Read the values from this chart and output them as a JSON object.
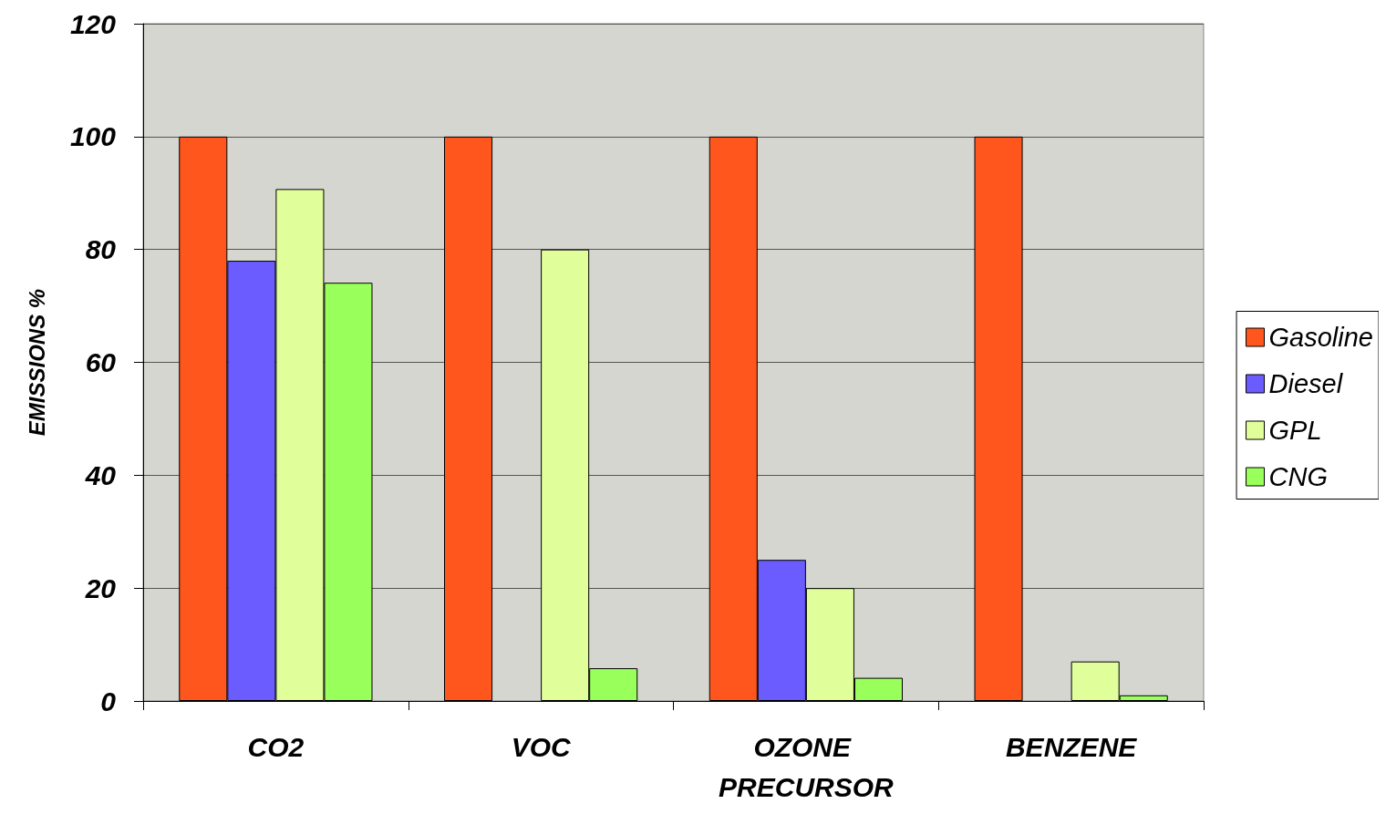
{
  "chart_data": {
    "type": "bar",
    "ylabel": "EMISSIONS %",
    "categories": [
      "CO2",
      "VOC",
      "OZONE PRECURSOR",
      "BENZENE"
    ],
    "series": [
      {
        "name": "Gasoline",
        "color": "#ff561e",
        "values": [
          100,
          100,
          100,
          100
        ]
      },
      {
        "name": "Diesel",
        "color": "#6a5cff",
        "values": [
          78,
          null,
          25,
          null
        ]
      },
      {
        "name": "GPL",
        "color": "#e0ff9a",
        "values": [
          90.7,
          80,
          20,
          7
        ]
      },
      {
        "name": "CNG",
        "color": "#99ff5a",
        "values": [
          74.1,
          5.8,
          4.1,
          1
        ]
      }
    ],
    "ylim": [
      0,
      120
    ],
    "yticks": [
      0,
      20,
      40,
      60,
      80,
      100,
      120
    ],
    "grid": "y",
    "legend": "right"
  }
}
